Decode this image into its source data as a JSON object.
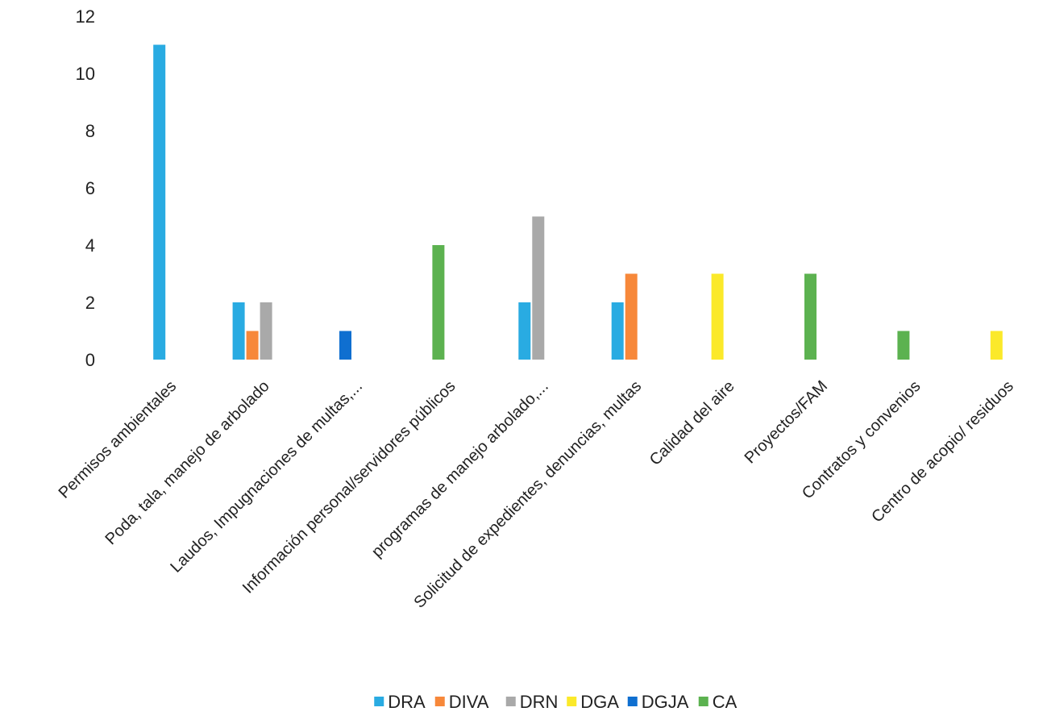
{
  "chart_data": {
    "type": "bar",
    "title": "",
    "xlabel": "",
    "ylabel": "",
    "ylim": [
      0,
      12
    ],
    "yticks": [
      0,
      2,
      4,
      6,
      8,
      10,
      12
    ],
    "grid": false,
    "legend_position": "bottom",
    "categories": [
      "Permisos ambientales",
      "Poda, tala, manejo de arbolado",
      "Laudos, Impugnaciones de multas,...",
      "Información personal/servidores públicos",
      "programas de manejo arbolado,...",
      "Solicitud de expedientes, denuncias, multas",
      "Calidad del aire",
      "Proyectos/FAM",
      "Contratos y convenios",
      "Centro de acopio/ residuos"
    ],
    "series": [
      {
        "name": "DRA",
        "color": "#29abe2",
        "values": [
          11,
          2,
          null,
          null,
          2,
          2,
          null,
          null,
          null,
          null
        ]
      },
      {
        "name": "DIVA",
        "color": "#f7883a",
        "values": [
          null,
          1,
          null,
          null,
          null,
          3,
          null,
          null,
          null,
          null
        ]
      },
      {
        "name": "DRN",
        "color": "#a9a9a9",
        "values": [
          null,
          2,
          null,
          null,
          5,
          null,
          null,
          null,
          null,
          null
        ]
      },
      {
        "name": "DGA",
        "color": "#fbe92a",
        "values": [
          null,
          null,
          null,
          null,
          null,
          null,
          3,
          null,
          null,
          1
        ]
      },
      {
        "name": "DGJA",
        "color": "#0f6fd0",
        "values": [
          null,
          null,
          1,
          null,
          null,
          null,
          null,
          null,
          null,
          null
        ]
      },
      {
        "name": "CA",
        "color": "#5cb250",
        "values": [
          null,
          null,
          null,
          4,
          null,
          null,
          null,
          3,
          1,
          null
        ]
      }
    ]
  }
}
